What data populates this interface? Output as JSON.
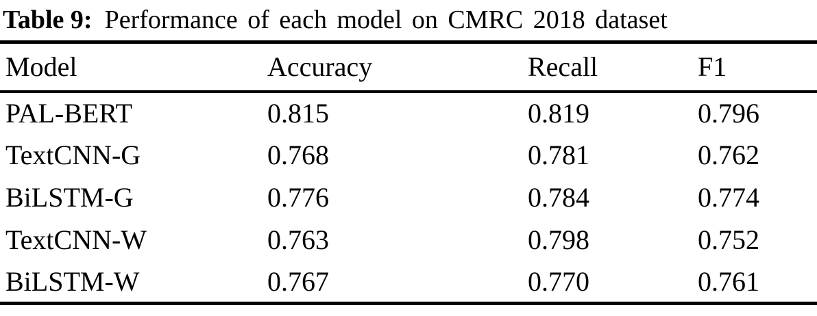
{
  "caption": {
    "label": "Table 9:",
    "text": "Performance of each model on CMRC 2018 dataset"
  },
  "table": {
    "columns": [
      "Model",
      "Accuracy",
      "Recall",
      "F1"
    ],
    "rows": [
      {
        "model": "PAL-BERT",
        "accuracy": "0.815",
        "recall": "0.819",
        "f1": "0.796"
      },
      {
        "model": "TextCNN-G",
        "accuracy": "0.768",
        "recall": "0.781",
        "f1": "0.762"
      },
      {
        "model": "BiLSTM-G",
        "accuracy": "0.776",
        "recall": "0.784",
        "f1": "0.774"
      },
      {
        "model": "TextCNN-W",
        "accuracy": "0.763",
        "recall": "0.798",
        "f1": "0.752"
      },
      {
        "model": "BiLSTM-W",
        "accuracy": "0.767",
        "recall": "0.770",
        "f1": "0.761"
      }
    ]
  },
  "colors": {
    "text": "#000000",
    "background": "#ffffff",
    "rule": "#000000"
  },
  "chart_data": {
    "type": "table",
    "title": "Table 9: Performance of each model on CMRC 2018 dataset",
    "columns": [
      "Model",
      "Accuracy",
      "Recall",
      "F1"
    ],
    "rows": [
      [
        "PAL-BERT",
        0.815,
        0.819,
        0.796
      ],
      [
        "TextCNN-G",
        0.768,
        0.781,
        0.762
      ],
      [
        "BiLSTM-G",
        0.776,
        0.784,
        0.774
      ],
      [
        "TextCNN-W",
        0.763,
        0.798,
        0.752
      ],
      [
        "BiLSTM-W",
        0.767,
        0.77,
        0.761
      ]
    ]
  }
}
